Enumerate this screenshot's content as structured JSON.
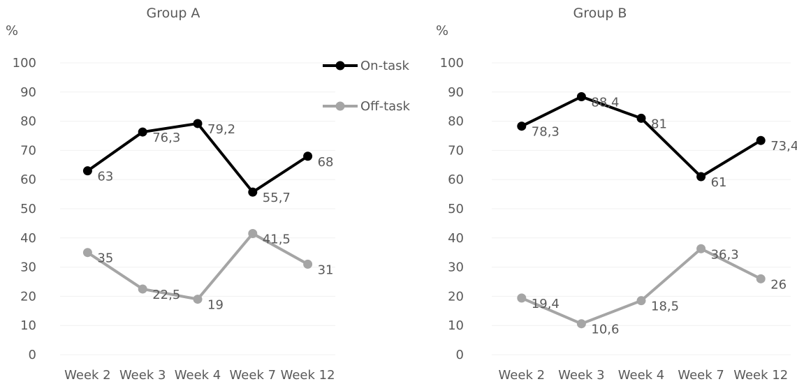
{
  "chart_data": [
    {
      "type": "line",
      "title": "Group A",
      "ylabel": "%",
      "categories": [
        "Week 2",
        "Week 3",
        "Week 4",
        "Week 7",
        "Week 12"
      ],
      "ylim": [
        0,
        100
      ],
      "yticks": [
        0,
        10,
        20,
        30,
        40,
        50,
        60,
        70,
        80,
        90,
        100
      ],
      "grid": true,
      "legend": "top-right",
      "series": [
        {
          "name": "On-task",
          "color": "#000000",
          "values": [
            63,
            76.3,
            79.2,
            55.7,
            68
          ],
          "labels": [
            "63",
            "76,3",
            "79,2",
            "55,7",
            "68"
          ]
        },
        {
          "name": "Off-task",
          "color": "#a5a5a5",
          "values": [
            35,
            22.5,
            19,
            41.5,
            31
          ],
          "labels": [
            "35",
            "22,5",
            "19",
            "41,5",
            "31"
          ]
        }
      ]
    },
    {
      "type": "line",
      "title": "Group B",
      "ylabel": "%",
      "categories": [
        "Week 2",
        "Week 3",
        "Week 4",
        "Week 7",
        "Week 12"
      ],
      "ylim": [
        0,
        100
      ],
      "yticks": [
        0,
        10,
        20,
        30,
        40,
        50,
        60,
        70,
        80,
        90,
        100
      ],
      "grid": true,
      "legend": "none",
      "series": [
        {
          "name": "On-task",
          "color": "#000000",
          "values": [
            78.3,
            88.4,
            81,
            61,
            73.4
          ],
          "labels": [
            "78,3",
            "88,4",
            "81",
            "61",
            "73,4"
          ]
        },
        {
          "name": "Off-task",
          "color": "#a5a5a5",
          "values": [
            19.4,
            10.6,
            18.5,
            36.3,
            26
          ],
          "labels": [
            "19,4",
            "10,6",
            "18,5",
            "36,3",
            "26"
          ]
        }
      ]
    }
  ]
}
